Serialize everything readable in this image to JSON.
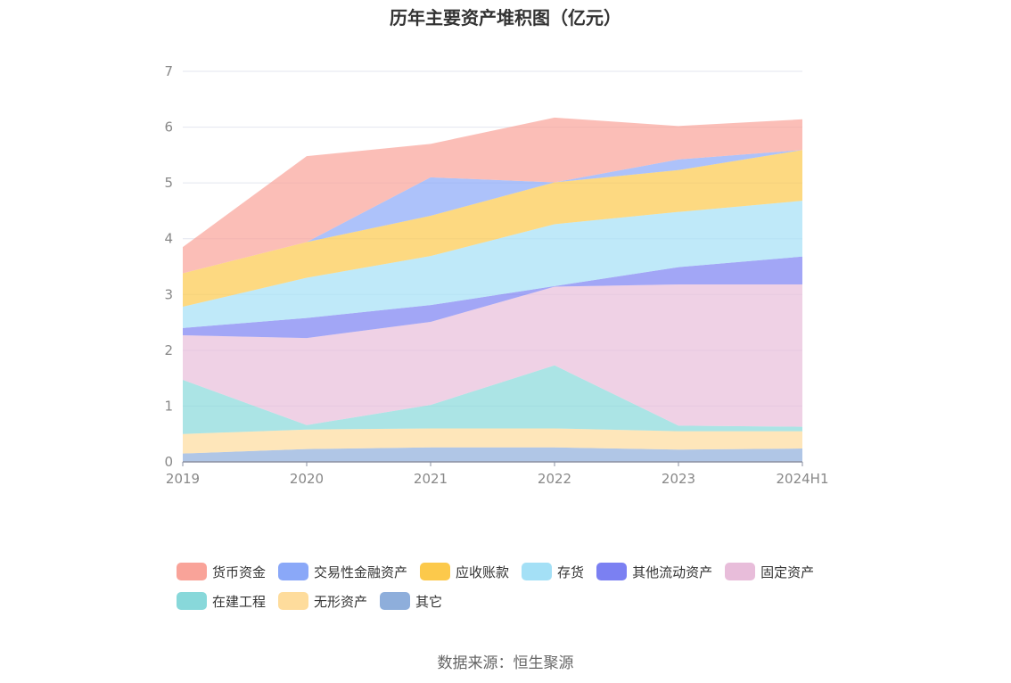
{
  "title": "历年主要资产堆积图（亿元）",
  "source": "数据来源：恒生聚源",
  "chart_data": {
    "type": "area",
    "stacked": true,
    "categories": [
      "2019",
      "2020",
      "2021",
      "2022",
      "2023",
      "2024H1"
    ],
    "ylim": [
      0,
      7
    ],
    "yticks": [
      0,
      1,
      2,
      3,
      4,
      5,
      6,
      7
    ],
    "grid": true,
    "legend_position": "bottom",
    "series": [
      {
        "name": "其它",
        "color": "#8eaedb",
        "values": [
          0.15,
          0.23,
          0.26,
          0.26,
          0.22,
          0.24
        ]
      },
      {
        "name": "无形资产",
        "color": "#fedc9c",
        "values": [
          0.35,
          0.35,
          0.34,
          0.34,
          0.33,
          0.31
        ]
      },
      {
        "name": "在建工程",
        "color": "#88d8da",
        "values": [
          0.97,
          0.08,
          0.42,
          1.13,
          0.1,
          0.08
        ]
      },
      {
        "name": "固定资产",
        "color": "#e8bdda",
        "values": [
          0.8,
          1.56,
          1.49,
          1.41,
          2.53,
          2.55
        ]
      },
      {
        "name": "其他流动资产",
        "color": "#7b80f2",
        "values": [
          0.13,
          0.36,
          0.3,
          0.01,
          0.31,
          0.5
        ]
      },
      {
        "name": "存货",
        "color": "#a4e0f6",
        "values": [
          0.38,
          0.72,
          0.88,
          1.11,
          0.99,
          1.0
        ]
      },
      {
        "name": "应收账款",
        "color": "#fcc94b",
        "values": [
          0.6,
          0.64,
          0.72,
          0.75,
          0.75,
          0.91
        ]
      },
      {
        "name": "交易性金融资产",
        "color": "#8aa8f8",
        "values": [
          0.0,
          0.0,
          0.69,
          0.0,
          0.19,
          0.0
        ]
      },
      {
        "name": "货币资金",
        "color": "#f9a399",
        "values": [
          0.47,
          1.54,
          0.6,
          1.16,
          0.6,
          0.55
        ]
      }
    ]
  },
  "legend_order": [
    "货币资金",
    "交易性金融资产",
    "应收账款",
    "存货",
    "其他流动资产",
    "固定资产",
    "在建工程",
    "无形资产",
    "其它"
  ]
}
